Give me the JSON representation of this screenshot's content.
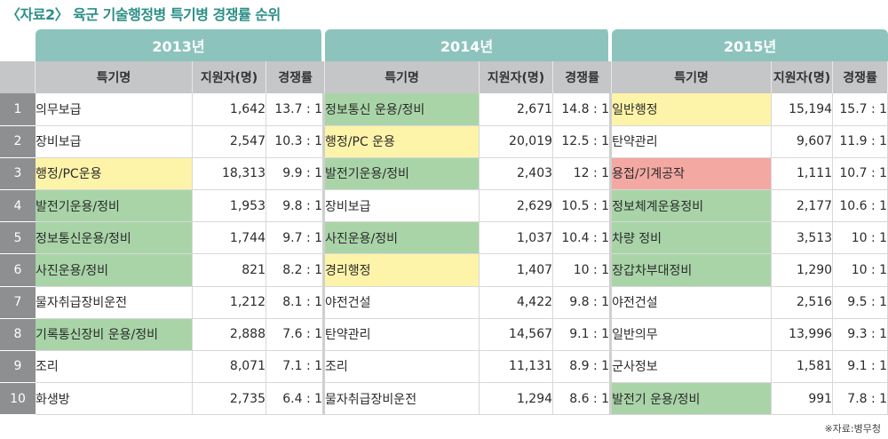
{
  "title": "〈자료2〉 육군 기술행정병 특기병 경쟁률 순위",
  "source": "※자료:병무청",
  "colors": {
    "teal": "#8cc4bd",
    "green": "#a9d4a8",
    "yellow": "#fdf3a9",
    "red": "#f3a8a2",
    "rank_bg": "#8e8f90",
    "header_bg": "#c5c6c7"
  },
  "years": [
    {
      "label": "2013년",
      "col_name": "특기명",
      "col_applicants": "지원자(명)",
      "col_rate": "경쟁률",
      "rows": [
        {
          "name": "의무보급",
          "applicants": "1,642",
          "rate": "13.7 : 1",
          "hl": "none"
        },
        {
          "name": "장비보급",
          "applicants": "2,547",
          "rate": "10.3 : 1",
          "hl": "none"
        },
        {
          "name": "행정/PC운용",
          "applicants": "18,313",
          "rate": "9.9 : 1",
          "hl": "yellow"
        },
        {
          "name": "발전기운용/정비",
          "applicants": "1,953",
          "rate": "9.8 : 1",
          "hl": "green"
        },
        {
          "name": "정보통신운용/정비",
          "applicants": "1,744",
          "rate": "9.7 : 1",
          "hl": "green"
        },
        {
          "name": "사진운용/정비",
          "applicants": "821",
          "rate": "8.2 : 1",
          "hl": "green"
        },
        {
          "name": "물자취급장비운전",
          "applicants": "1,212",
          "rate": "8.1 : 1",
          "hl": "none"
        },
        {
          "name": "기록통신장비 운용/정비",
          "applicants": "2,888",
          "rate": "7.6 : 1",
          "hl": "green"
        },
        {
          "name": "조리",
          "applicants": "8,071",
          "rate": "7.1 : 1",
          "hl": "none"
        },
        {
          "name": "화생방",
          "applicants": "2,735",
          "rate": "6.4 : 1",
          "hl": "none"
        }
      ]
    },
    {
      "label": "2014년",
      "col_name": "특기명",
      "col_applicants": "지원자(명)",
      "col_rate": "경쟁률",
      "rows": [
        {
          "name": "정보통신 운용/정비",
          "applicants": "2,671",
          "rate": "14.8 : 1",
          "hl": "green"
        },
        {
          "name": "행정/PC 운용",
          "applicants": "20,019",
          "rate": "12.5 : 1",
          "hl": "yellow"
        },
        {
          "name": "발전기운용/정비",
          "applicants": "2,403",
          "rate": "12 : 1",
          "hl": "green"
        },
        {
          "name": "장비보급",
          "applicants": "2,629",
          "rate": "10.5 : 1",
          "hl": "none"
        },
        {
          "name": "사진운용/정비",
          "applicants": "1,037",
          "rate": "10.4 : 1",
          "hl": "green"
        },
        {
          "name": "경리행정",
          "applicants": "1,407",
          "rate": "10 : 1",
          "hl": "yellow"
        },
        {
          "name": "야전건설",
          "applicants": "4,422",
          "rate": "9.8 : 1",
          "hl": "none"
        },
        {
          "name": "탄약관리",
          "applicants": "14,567",
          "rate": "9.1 : 1",
          "hl": "none"
        },
        {
          "name": "조리",
          "applicants": "11,131",
          "rate": "8.9 : 1",
          "hl": "none"
        },
        {
          "name": "물자취급장비운전",
          "applicants": "1,294",
          "rate": "8.6 : 1",
          "hl": "none"
        }
      ]
    },
    {
      "label": "2015년",
      "col_name": "특기명",
      "col_applicants": "지원자(명)",
      "col_rate": "경쟁률",
      "rows": [
        {
          "name": "일반행정",
          "applicants": "15,194",
          "rate": "15.7 : 1",
          "hl": "yellow"
        },
        {
          "name": "탄약관리",
          "applicants": "9,607",
          "rate": "11.9 : 1",
          "hl": "none"
        },
        {
          "name": "용접/기계공작",
          "applicants": "1,111",
          "rate": "10.7 : 1",
          "hl": "red"
        },
        {
          "name": "정보체계운용정비",
          "applicants": "2,177",
          "rate": "10.6 : 1",
          "hl": "green"
        },
        {
          "name": "차량 정비",
          "applicants": "3,513",
          "rate": "10 : 1",
          "hl": "green"
        },
        {
          "name": "장갑차부대정비",
          "applicants": "1,290",
          "rate": "10 : 1",
          "hl": "green"
        },
        {
          "name": "야전건설",
          "applicants": "2,516",
          "rate": "9.5 : 1",
          "hl": "none"
        },
        {
          "name": "일반의무",
          "applicants": "13,996",
          "rate": "9.3 : 1",
          "hl": "none"
        },
        {
          "name": "군사정보",
          "applicants": "1,581",
          "rate": "9.1 : 1",
          "hl": "none"
        },
        {
          "name": "발전기 운용/정비",
          "applicants": "991",
          "rate": "7.8 : 1",
          "hl": "green"
        }
      ]
    }
  ],
  "ranks": [
    "1",
    "2",
    "3",
    "4",
    "5",
    "6",
    "7",
    "8",
    "9",
    "10"
  ]
}
